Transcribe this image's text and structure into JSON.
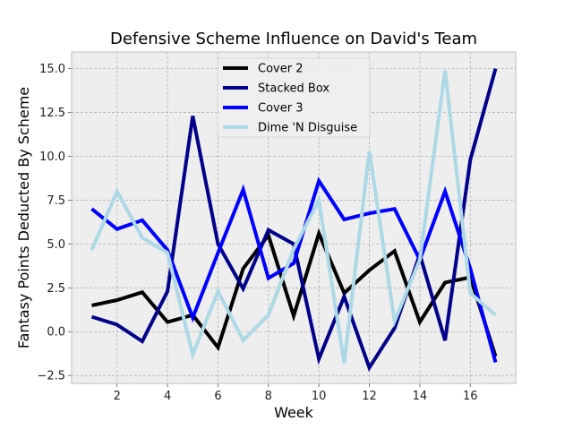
{
  "chart_data": {
    "type": "line",
    "title": "Defensive Scheme Influence on David's Team",
    "xlabel": "Week",
    "ylabel": "Fantasy Points Deducted By Scheme",
    "x": [
      1,
      2,
      3,
      4,
      5,
      6,
      7,
      8,
      9,
      10,
      11,
      12,
      13,
      14,
      15,
      16,
      17
    ],
    "xlim": [
      0.2,
      17.8
    ],
    "ylim": [
      -2.95,
      15.95
    ],
    "xticks": [
      2,
      4,
      6,
      8,
      10,
      12,
      14,
      16
    ],
    "yticks": [
      -2.5,
      0.0,
      2.5,
      5.0,
      7.5,
      10.0,
      12.5,
      15.0
    ],
    "xtick_labels": [
      "2",
      "4",
      "6",
      "8",
      "10",
      "12",
      "14",
      "16"
    ],
    "ytick_labels": [
      "−2.5",
      "0.0",
      "2.5",
      "5.0",
      "7.5",
      "10.0",
      "12.5",
      "15.0"
    ],
    "grid": true,
    "legend_position": "top-center",
    "series": [
      {
        "name": "Cover 2",
        "color": "#000000",
        "values": [
          1.5,
          1.8,
          2.25,
          0.55,
          0.95,
          -0.9,
          3.6,
          5.5,
          0.9,
          5.6,
          2.2,
          3.5,
          4.6,
          0.55,
          2.8,
          3.1,
          -1.4
        ]
      },
      {
        "name": "Stacked Box",
        "color": "#00008b",
        "values": [
          0.85,
          0.4,
          -0.55,
          2.3,
          12.3,
          5.0,
          2.45,
          5.8,
          5.0,
          -1.55,
          2.0,
          -2.05,
          0.2,
          4.4,
          -0.5,
          9.8,
          15.0
        ]
      },
      {
        "name": "Cover 3",
        "color": "#0000ff",
        "values": [
          7.0,
          5.85,
          6.35,
          4.65,
          0.8,
          4.5,
          8.1,
          3.05,
          3.9,
          8.6,
          6.4,
          6.75,
          7.0,
          4.1,
          8.0,
          3.6,
          -1.75
        ]
      },
      {
        "name": "Dime 'N Disguise",
        "color": "#add8e6",
        "values": [
          4.65,
          8.0,
          5.35,
          4.5,
          -1.3,
          2.3,
          -0.5,
          0.95,
          4.7,
          7.5,
          -1.8,
          10.3,
          0.6,
          4.1,
          14.9,
          2.2,
          0.95
        ]
      }
    ]
  }
}
